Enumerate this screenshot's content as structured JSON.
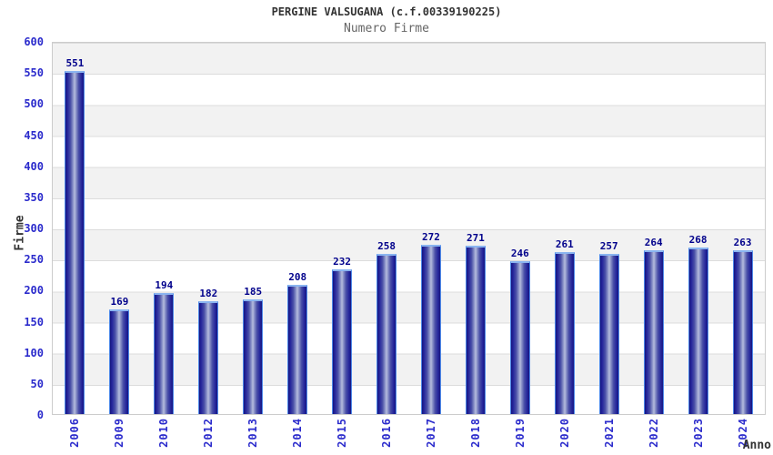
{
  "header": {
    "title": "PERGINE VALSUGANA (c.f.00339190225)",
    "subtitle": "Numero Firme"
  },
  "chart_data": {
    "type": "bar",
    "title": "PERGINE VALSUGANA (c.f.00339190225)",
    "subtitle": "Numero Firme",
    "categories": [
      "2006",
      "2009",
      "2010",
      "2012",
      "2013",
      "2014",
      "2015",
      "2016",
      "2017",
      "2018",
      "2019",
      "2020",
      "2021",
      "2022",
      "2023",
      "2024"
    ],
    "values": [
      551,
      169,
      194,
      182,
      185,
      208,
      232,
      258,
      272,
      271,
      246,
      261,
      257,
      264,
      268,
      263
    ],
    "xlabel": "Anno",
    "ylabel": "Firme",
    "ylim": [
      0,
      600
    ],
    "y_ticks": [
      0,
      50,
      100,
      150,
      200,
      250,
      300,
      350,
      400,
      450,
      500,
      550,
      600
    ],
    "grid": true,
    "legend": false,
    "bar_value_labels_shown": true
  },
  "colors": {
    "axis_tick_blue": "#2b2bcc",
    "value_label_navy": "#00008b",
    "bar_dark_edge": "#16167e",
    "bar_light_center": "#b8bede",
    "bar_border_blue": "#4d88e8",
    "band_gray": "#f2f2f2",
    "grid_line": "#dcdcdc",
    "axis_title_dark": "#333333",
    "subtitle_gray": "#666666"
  }
}
